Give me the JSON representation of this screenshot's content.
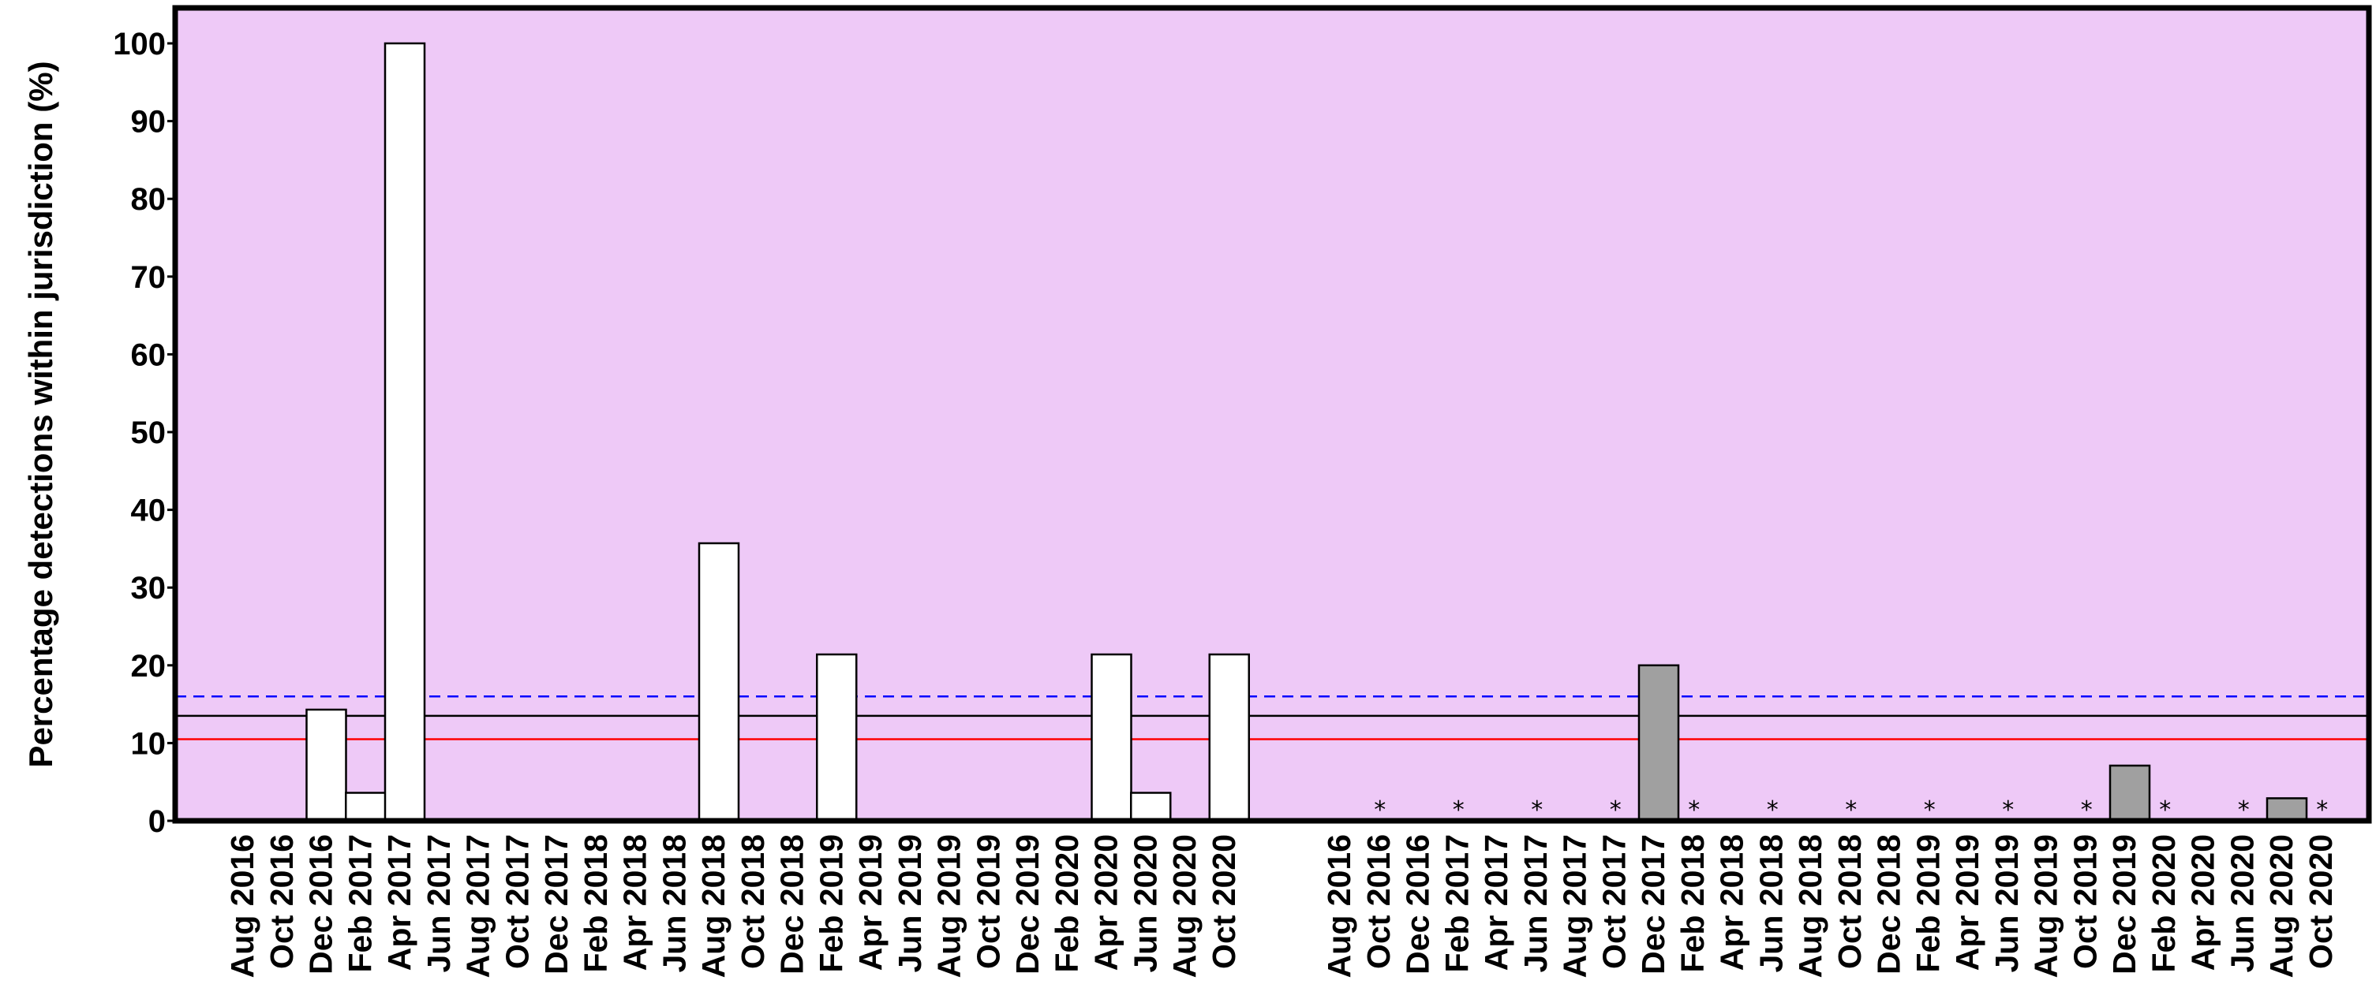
{
  "chart_data": {
    "type": "bar",
    "ylabel": "Percentage detections  within jurisdiction (%)",
    "ylim": [
      0,
      105
    ],
    "yticks": [
      0,
      10,
      20,
      30,
      40,
      50,
      60,
      70,
      80,
      90,
      100
    ],
    "grid": false,
    "background_color": "#eec9f7",
    "reference_lines": [
      {
        "value": 16,
        "color": "#0000ff",
        "style": "dashed"
      },
      {
        "value": 13.5,
        "color": "#000000",
        "style": "solid"
      },
      {
        "value": 10.5,
        "color": "#ff0000",
        "style": "solid"
      }
    ],
    "groups": [
      {
        "fill": "#ffffff",
        "categories": [
          "Aug 2016",
          "Oct 2016",
          "Dec 2016",
          "Feb 2017",
          "Apr 2017",
          "Jun 2017",
          "Aug 2017",
          "Oct 2017",
          "Dec 2017",
          "Feb 2018",
          "Apr 2018",
          "Jun 2018",
          "Aug 2018",
          "Oct 2018",
          "Dec 2018",
          "Feb 2019",
          "Apr 2019",
          "Jun 2019",
          "Aug 2019",
          "Oct 2019",
          "Dec 2019",
          "Feb 2020",
          "Apr 2020",
          "Jun 2020",
          "Aug 2020",
          "Oct 2020"
        ],
        "values": [
          0,
          0,
          14.3,
          3.6,
          100,
          0,
          0,
          0,
          0,
          0,
          0,
          0,
          35.7,
          0,
          0,
          21.4,
          0,
          0,
          0,
          0,
          0,
          0,
          21.4,
          3.6,
          0,
          21.4
        ],
        "markers": [
          false,
          false,
          false,
          false,
          false,
          false,
          false,
          false,
          false,
          false,
          false,
          false,
          false,
          false,
          false,
          false,
          false,
          false,
          false,
          false,
          false,
          false,
          false,
          false,
          false,
          false
        ]
      },
      {
        "fill": "#a0a0a0",
        "categories": [
          "Aug 2016",
          "Oct 2016",
          "Dec 2016",
          "Feb 2017",
          "Apr 2017",
          "Jun 2017",
          "Aug 2017",
          "Oct 2017",
          "Dec 2017",
          "Feb 2018",
          "Apr 2018",
          "Jun 2018",
          "Aug 2018",
          "Oct 2018",
          "Dec 2018",
          "Feb 2019",
          "Apr 2019",
          "Jun 2019",
          "Aug 2019",
          "Oct 2019",
          "Dec 2019",
          "Feb 2020",
          "Apr 2020",
          "Jun 2020",
          "Aug 2020",
          "Oct 2020"
        ],
        "values": [
          0,
          0,
          0,
          0,
          0,
          0,
          0,
          0,
          20,
          0,
          0,
          0,
          0,
          0,
          0,
          0,
          0,
          0,
          0,
          0,
          7.1,
          0,
          0,
          0,
          2.9,
          0
        ],
        "markers": [
          false,
          true,
          false,
          true,
          false,
          true,
          false,
          true,
          false,
          true,
          false,
          true,
          false,
          true,
          false,
          true,
          false,
          true,
          false,
          true,
          false,
          true,
          false,
          true,
          false,
          true
        ]
      }
    ],
    "marker_symbol": "*"
  }
}
